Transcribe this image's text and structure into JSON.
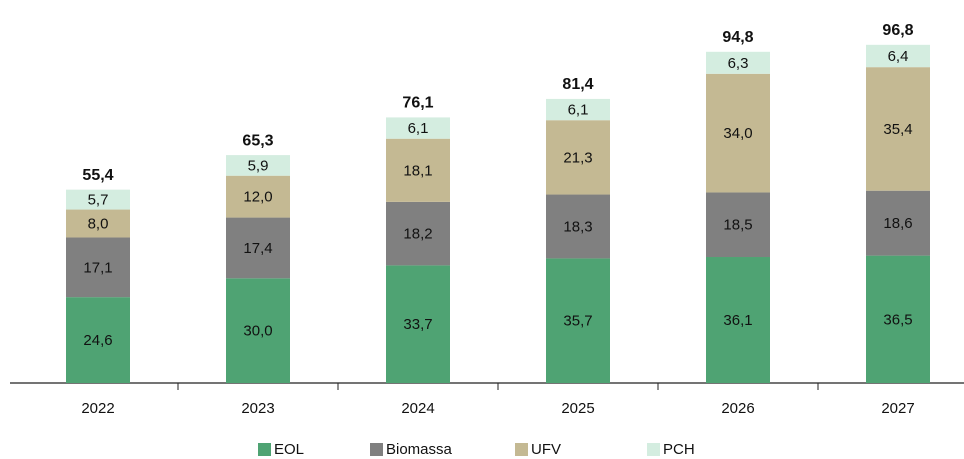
{
  "chart_data": {
    "type": "stacked-bar",
    "categories": [
      "2022",
      "2023",
      "2024",
      "2025",
      "2026",
      "2027"
    ],
    "series": [
      {
        "name": "EOL",
        "color": "#4fa373",
        "values": [
          24.6,
          30.0,
          33.7,
          35.7,
          36.1,
          36.5
        ],
        "value_labels": [
          "24,6",
          "30,0",
          "33,7",
          "35,7",
          "36,1",
          "36,5"
        ]
      },
      {
        "name": "Biomassa",
        "color": "#808080",
        "values": [
          17.1,
          17.4,
          18.2,
          18.3,
          18.5,
          18.6
        ],
        "value_labels": [
          "17,1",
          "17,4",
          "18,2",
          "18,3",
          "18,5",
          "18,6"
        ]
      },
      {
        "name": "UFV",
        "color": "#c4b993",
        "values": [
          8.0,
          12.0,
          18.1,
          21.3,
          34.0,
          35.4
        ],
        "value_labels": [
          "8,0",
          "12,0",
          "18,1",
          "21,3",
          "34,0",
          "35,4"
        ]
      },
      {
        "name": "PCH",
        "color": "#d4ede0",
        "values": [
          5.7,
          5.9,
          6.1,
          6.1,
          6.3,
          6.4
        ],
        "value_labels": [
          "5,7",
          "5,9",
          "6,1",
          "6,1",
          "6,3",
          "6,4"
        ]
      }
    ],
    "totals": {
      "values": [
        55.4,
        65.3,
        76.1,
        81.4,
        94.8,
        96.8
      ],
      "value_labels": [
        "55,4",
        "65,3",
        "76,1",
        "81,4",
        "94,8",
        "96,8"
      ]
    },
    "legend": "bottom"
  }
}
